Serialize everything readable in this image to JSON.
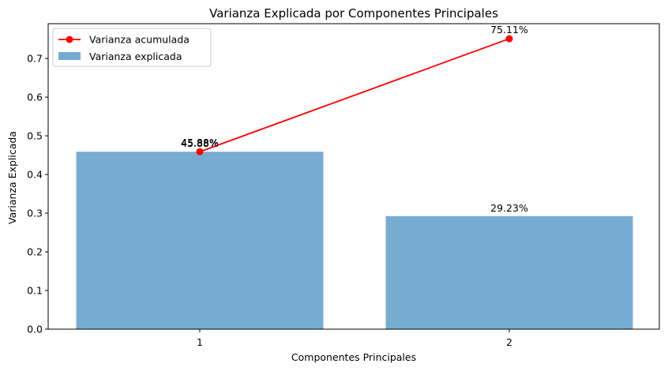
{
  "chart_data": {
    "type": "bar",
    "title": "Varianza Explicada por Componentes Principales",
    "xlabel": "Componentes Principales",
    "ylabel": "Varianza Explicada",
    "categories": [
      "1",
      "2"
    ],
    "ylim": [
      0,
      0.79
    ],
    "yticks": [
      "0.0",
      "0.1",
      "0.2",
      "0.3",
      "0.4",
      "0.5",
      "0.6",
      "0.7"
    ],
    "grid": false,
    "legend_position": "top-left",
    "series": [
      {
        "name": "Varianza explicada",
        "kind": "bar",
        "color": "#76acd2",
        "values": [
          0.4588,
          0.2923
        ],
        "labels": [
          "45.88%",
          "29.23%"
        ]
      },
      {
        "name": "Varianza acumulada",
        "kind": "line",
        "color": "#ff0000",
        "values": [
          0.4588,
          0.7511
        ],
        "labels": [
          "45.88%",
          "75.11%"
        ]
      }
    ]
  }
}
